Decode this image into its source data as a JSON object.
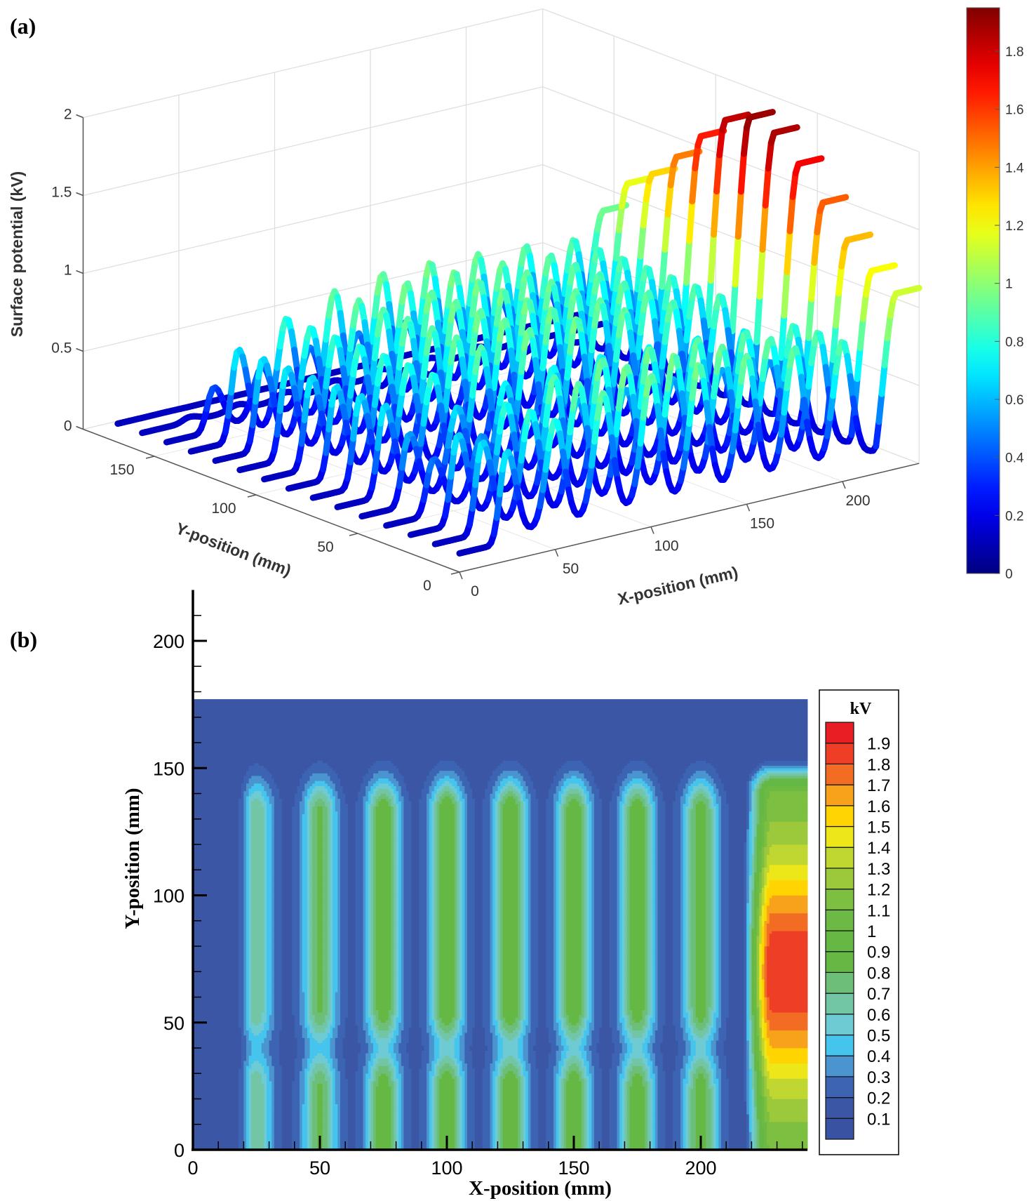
{
  "panels": {
    "a": "(a)",
    "b": "(b)"
  },
  "chart_data": [
    {
      "type": "line",
      "subtype": "3d-scan-lines",
      "panel": "(a)",
      "xlabel": "X-position (mm)",
      "ylabel": "Y-position (mm)",
      "zlabel": "Surface potential (kV)",
      "xlim": [
        0,
        240
      ],
      "ylim": [
        0,
        185
      ],
      "zlim": [
        0,
        2
      ],
      "x_ticks": [
        "0",
        "50",
        "100",
        "150",
        "200"
      ],
      "x_tick_values": [
        0,
        50,
        100,
        150,
        200
      ],
      "y_ticks": [
        "0",
        "50",
        "100",
        "150"
      ],
      "y_tick_values": [
        0,
        50,
        100,
        150
      ],
      "z_ticks": [
        "0",
        "0.5",
        "1",
        "1.5",
        "2"
      ],
      "z_tick_values": [
        0,
        0.5,
        1,
        1.5,
        2
      ],
      "grid": true,
      "colormap": "jet",
      "colorbar": {
        "range": [
          0,
          1.95
        ],
        "ticks": [
          "0",
          "0.2",
          "0.4",
          "0.6",
          "0.8",
          "1",
          "1.2",
          "1.4",
          "1.6",
          "1.8"
        ],
        "tick_values": [
          0,
          0.2,
          0.4,
          0.6,
          0.8,
          1,
          1.2,
          1.4,
          1.6,
          1.8
        ],
        "placement": "right"
      },
      "scan_line_y_values": [
        0,
        12,
        24,
        36,
        48,
        60,
        72,
        84,
        96,
        108,
        120,
        132,
        144,
        156,
        168
      ]
    },
    {
      "type": "heatmap",
      "subtype": "filled-contour",
      "panel": "(b)",
      "xlabel": "X-position (mm)",
      "ylabel": "Y-position (mm)",
      "xlim": [
        0,
        242
      ],
      "ylim": [
        0,
        200
      ],
      "data_extent": {
        "x": [
          0,
          242
        ],
        "y": [
          0,
          177
        ]
      },
      "x_ticks": [
        "0",
        "50",
        "100",
        "150",
        "200"
      ],
      "x_tick_values": [
        0,
        50,
        100,
        150,
        200
      ],
      "y_ticks": [
        "0",
        "50",
        "100",
        "150",
        "200"
      ],
      "y_tick_values": [
        0,
        50,
        100,
        150,
        200
      ],
      "legend": {
        "title": "kV",
        "placement": "right",
        "levels": [
          "1.9",
          "1.8",
          "1.7",
          "1.6",
          "1.5",
          "1.4",
          "1.3",
          "1.2",
          "1.1",
          "1",
          "0.9",
          "0.8",
          "0.7",
          "0.6",
          "0.5",
          "0.4",
          "0.3",
          "0.2",
          "0.1"
        ],
        "colors_low_to_high": [
          "#3a52a2",
          "#3b56a5",
          "#3c64b2",
          "#4a95d0",
          "#45c4ee",
          "#6ecbd3",
          "#72c5a5",
          "#6dbe78",
          "#66b845",
          "#66b845",
          "#6cb944",
          "#7dbf41",
          "#9cc83b",
          "#bfd730",
          "#ede619",
          "#ffd400",
          "#f8a21c",
          "#f26c23",
          "#ee3f26",
          "#e91e25"
        ]
      }
    }
  ],
  "surface_model": {
    "description_values_kV": "potential field shared by both panels",
    "electrode_x_mm": [
      25,
      50,
      75,
      100,
      125,
      150,
      175,
      200
    ],
    "electrode_peak_kV": [
      0.55,
      0.68,
      0.78,
      0.82,
      0.82,
      0.8,
      0.78,
      0.75
    ],
    "baseline_kV": 0.15,
    "dip_y_mm": 40,
    "edge_start_x_mm": 218,
    "edge_peak_kV": 1.9,
    "edge_peak_y_mm": 70
  }
}
